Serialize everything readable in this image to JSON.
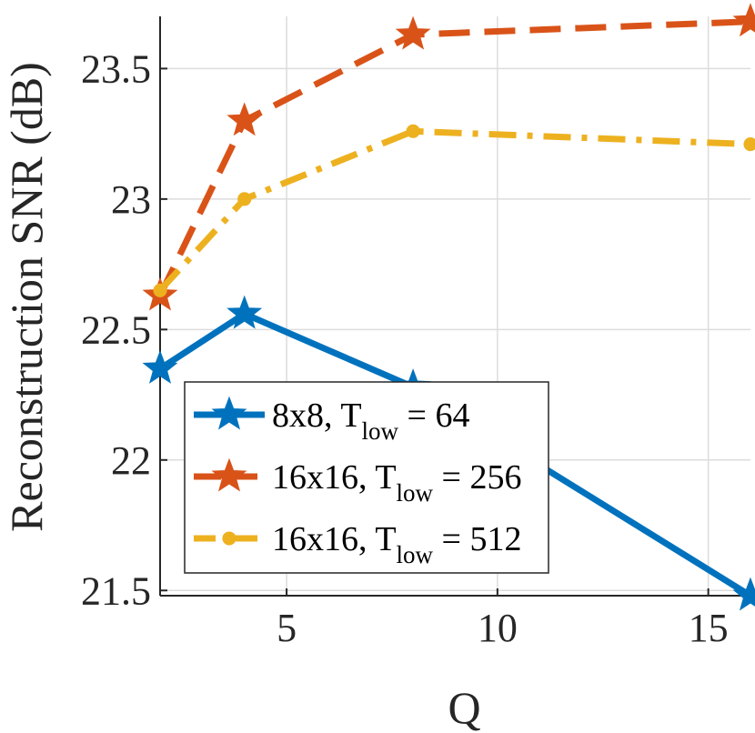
{
  "chart_data": {
    "type": "line",
    "xlabel": "Q",
    "ylabel": "Reconstruction SNR (dB)",
    "xlim": [
      2,
      16
    ],
    "ylim": [
      21.48,
      23.7
    ],
    "xticks": [
      5,
      10,
      15
    ],
    "yticks": [
      21.5,
      22,
      22.5,
      23,
      23.5
    ],
    "xtick_labels": [
      "5",
      "10",
      "15"
    ],
    "ytick_labels": [
      "21.5",
      "22",
      "22.5",
      "23",
      "23.5"
    ],
    "grid": true,
    "legend_position": "lower-left",
    "x": [
      2,
      4,
      8,
      16
    ],
    "series": [
      {
        "legend_main": "8x8, T",
        "legend_sub": "low",
        "legend_tail": " = 64",
        "color": "#0072BD",
        "line_style": "solid",
        "marker": "star",
        "values": [
          22.35,
          22.56,
          22.28,
          21.48
        ]
      },
      {
        "legend_main": "16x16, T",
        "legend_sub": "low",
        "legend_tail": " = 256",
        "color": "#D95319",
        "line_style": "dashed",
        "marker": "star",
        "values": [
          22.63,
          23.3,
          23.63,
          23.68
        ]
      },
      {
        "legend_main": "16x16, T",
        "legend_sub": "low",
        "legend_tail": " = 512",
        "color": "#EDB120",
        "line_style": "dashdot",
        "marker": "dot",
        "values": [
          22.65,
          23.0,
          23.26,
          23.21
        ]
      }
    ]
  }
}
